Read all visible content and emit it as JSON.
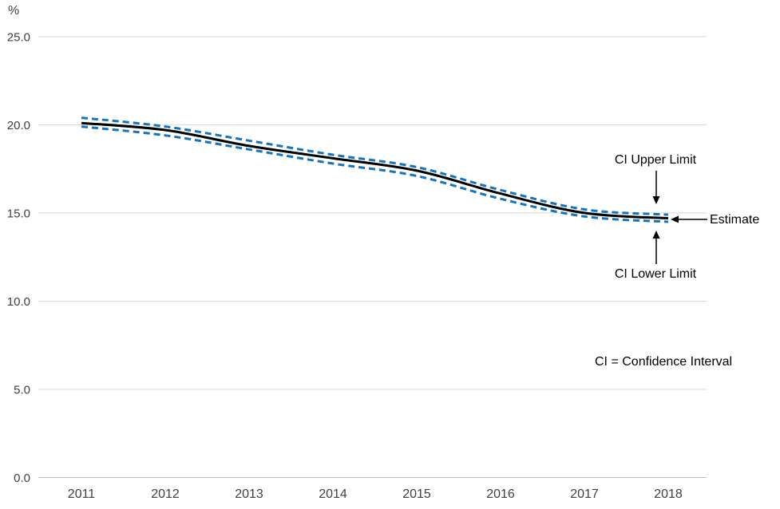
{
  "colors": {
    "background": "#ffffff",
    "grid": "#d9d9d9",
    "axis": "#bfbfbf",
    "axis_text": "#404040",
    "annotation_text": "#000000",
    "ci_blue": "#1574bf",
    "estimate_black": "#000000"
  },
  "chart_data": {
    "type": "line",
    "title": "",
    "xlabel": "",
    "ylabel": "%",
    "categories": [
      "2011",
      "2012",
      "2013",
      "2014",
      "2015",
      "2016",
      "2017",
      "2018"
    ],
    "series": [
      {
        "name": "Estimate",
        "values": [
          20.1,
          19.7,
          18.8,
          18.1,
          17.4,
          16.1,
          15.0,
          14.7
        ],
        "color": "#000000",
        "style": "solid"
      },
      {
        "name": "CI Upper Limit",
        "values": [
          20.4,
          19.9,
          19.1,
          18.3,
          17.6,
          16.3,
          15.2,
          14.9
        ],
        "color": "#1574bf",
        "style": "dashed"
      },
      {
        "name": "CI Lower Limit",
        "values": [
          19.9,
          19.4,
          18.6,
          17.8,
          17.1,
          15.8,
          14.8,
          14.5
        ],
        "color": "#1574bf",
        "style": "dashed"
      }
    ],
    "ylim": [
      0,
      25
    ],
    "yticks": [
      0,
      5,
      10,
      15,
      20,
      25
    ],
    "ytick_labels": [
      "0.0",
      "5.0",
      "10.0",
      "15.0",
      "20.0",
      "25.0"
    ],
    "grid": true,
    "legend_position": "none",
    "annotations": [
      {
        "text": "CI Upper Limit",
        "arrow": "down"
      },
      {
        "text": "Estimate",
        "arrow": "left"
      },
      {
        "text": "CI Lower Limit",
        "arrow": "up"
      },
      {
        "text": "CI = Confidence Interval",
        "arrow": "none"
      }
    ]
  }
}
